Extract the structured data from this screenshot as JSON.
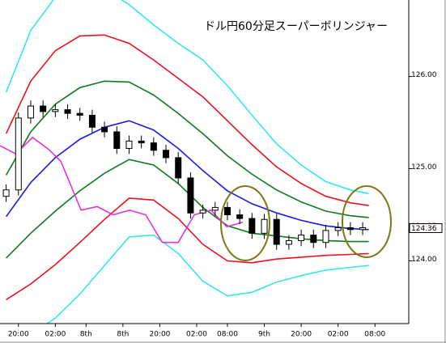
{
  "chart_data": {
    "type": "candlestick",
    "title": "ドル円60分足スーパーボリンジャー",
    "xlim": [
      -1,
      65.5
    ],
    "ylim": [
      123.32,
      126.83
    ],
    "xticks": [
      {
        "value": 2,
        "label": "20:00"
      },
      {
        "value": 8,
        "label": "02:00"
      },
      {
        "value": 13,
        "label": "8th"
      },
      {
        "value": 19,
        "label": "8th"
      },
      {
        "value": 25,
        "label": "20:00"
      },
      {
        "value": 31,
        "label": "02:00"
      },
      {
        "value": 36,
        "label": "08:00"
      },
      {
        "value": 42,
        "label": "9th"
      },
      {
        "value": 48,
        "label": "20:00"
      },
      {
        "value": 54,
        "label": "02:00"
      },
      {
        "value": 60,
        "label": "08:00"
      }
    ],
    "yticks": [
      {
        "value": 124,
        "label": "124.00"
      },
      {
        "value": 125,
        "label": "125.00"
      },
      {
        "value": 126,
        "label": "126.00"
      }
    ],
    "up_color": "#ffffff",
    "down_color": "#000000",
    "x": [
      0,
      2,
      4,
      6,
      8,
      10,
      12,
      14,
      16,
      18,
      20,
      22,
      24,
      26,
      28,
      30,
      32,
      34,
      36,
      38,
      40,
      42,
      44,
      46,
      48,
      50,
      52,
      54,
      56,
      58
    ],
    "open": [
      124.7,
      124.77,
      125.55,
      125.68,
      125.62,
      125.64,
      125.6,
      125.58,
      125.45,
      125.4,
      125.22,
      125.3,
      125.28,
      125.2,
      125.12,
      124.9,
      124.52,
      124.55,
      124.58,
      124.5,
      124.46,
      124.3,
      124.45,
      124.18,
      124.22,
      124.28,
      124.2,
      124.33,
      124.36,
      124.34
    ],
    "high": [
      124.83,
      125.61,
      125.74,
      125.74,
      125.7,
      125.7,
      125.66,
      125.64,
      125.51,
      125.46,
      125.36,
      125.36,
      125.34,
      125.26,
      125.18,
      124.96,
      124.61,
      124.64,
      124.64,
      124.56,
      124.52,
      124.51,
      124.51,
      124.28,
      124.34,
      124.34,
      124.39,
      124.42,
      124.42,
      124.42
    ],
    "low": [
      124.64,
      124.71,
      125.49,
      125.56,
      125.56,
      125.54,
      125.52,
      125.39,
      125.34,
      125.16,
      125.16,
      125.22,
      125.14,
      125.06,
      124.84,
      124.46,
      124.46,
      124.49,
      124.44,
      124.4,
      124.24,
      124.24,
      124.12,
      124.12,
      124.16,
      124.14,
      124.14,
      124.27,
      124.28,
      124.28
    ],
    "close": [
      124.77,
      125.55,
      125.68,
      125.62,
      125.64,
      125.6,
      125.58,
      125.45,
      125.4,
      125.22,
      125.3,
      125.28,
      125.2,
      125.12,
      124.9,
      124.52,
      124.55,
      124.58,
      124.5,
      124.46,
      124.3,
      124.45,
      124.18,
      124.22,
      124.28,
      124.2,
      124.33,
      124.36,
      124.34,
      124.36
    ],
    "series": [
      {
        "color": "#33e6f0",
        "x": [
          0,
          4,
          8,
          12,
          16,
          20,
          24,
          28,
          32,
          36,
          40,
          44,
          48,
          52,
          56,
          59
        ],
        "values": [
          125.83,
          126.5,
          126.86,
          127.0,
          126.95,
          126.78,
          126.56,
          126.36,
          126.18,
          125.9,
          125.58,
          125.27,
          125.04,
          124.86,
          124.77,
          124.73
        ]
      },
      {
        "color": "#33e6f0",
        "x": [
          0,
          4,
          8,
          12,
          16,
          20,
          24,
          28,
          32,
          36,
          40,
          44,
          48,
          52,
          56,
          59
        ],
        "values": [
          123.13,
          123.2,
          123.38,
          123.64,
          123.95,
          124.26,
          124.28,
          124.08,
          123.78,
          123.62,
          123.66,
          123.77,
          123.84,
          123.9,
          123.93,
          123.95
        ]
      },
      {
        "color": "#e8121e",
        "x": [
          0,
          4,
          8,
          12,
          16,
          20,
          24,
          28,
          32,
          36,
          40,
          44,
          48,
          52,
          56,
          59
        ],
        "values": [
          125.38,
          125.95,
          126.28,
          126.44,
          126.45,
          126.36,
          126.18,
          125.98,
          125.78,
          125.52,
          125.26,
          125.02,
          124.84,
          124.7,
          124.63,
          124.6
        ]
      },
      {
        "color": "#e8121e",
        "x": [
          0,
          4,
          8,
          12,
          16,
          20,
          24,
          28,
          32,
          36,
          40,
          44,
          48,
          52,
          56,
          59
        ],
        "values": [
          123.58,
          123.75,
          123.96,
          124.2,
          124.45,
          124.68,
          124.66,
          124.46,
          124.18,
          124.0,
          123.98,
          124.02,
          124.04,
          124.06,
          124.07,
          124.08
        ]
      },
      {
        "color": "#0f7a1e",
        "x": [
          0,
          4,
          8,
          12,
          16,
          20,
          24,
          28,
          32,
          36,
          40,
          44,
          48,
          52,
          56,
          59
        ],
        "values": [
          124.93,
          125.4,
          125.7,
          125.88,
          125.95,
          125.94,
          125.8,
          125.6,
          125.38,
          125.14,
          124.94,
          124.77,
          124.64,
          124.54,
          124.49,
          124.47
        ]
      },
      {
        "color": "#0f7a1e",
        "x": [
          0,
          4,
          8,
          12,
          16,
          20,
          24,
          28,
          32,
          36,
          40,
          44,
          48,
          52,
          56,
          59
        ],
        "values": [
          124.03,
          124.3,
          124.54,
          124.76,
          124.95,
          125.1,
          125.04,
          124.84,
          124.58,
          124.38,
          124.3,
          124.27,
          124.24,
          124.22,
          124.21,
          124.21
        ]
      },
      {
        "color": "#1a1ae0",
        "x": [
          0,
          4,
          8,
          12,
          16,
          20,
          24,
          28,
          32,
          36,
          40,
          44,
          48,
          52,
          56,
          59
        ],
        "values": [
          124.48,
          124.85,
          125.12,
          125.32,
          125.45,
          125.52,
          125.42,
          125.22,
          124.98,
          124.76,
          124.62,
          124.52,
          124.44,
          124.38,
          124.35,
          124.34
        ]
      },
      {
        "color": "#e632d8",
        "x": [
          -1,
          1.6,
          4.3,
          6.9,
          8.9,
          12.2,
          14.8,
          17.4,
          20.1,
          22.7,
          25.4,
          28,
          30.6,
          33.3,
          35.9,
          38.5
        ],
        "values": [
          125.25,
          125.16,
          125.34,
          125.21,
          125.08,
          124.55,
          124.59,
          124.5,
          124.55,
          124.5,
          124.2,
          124.2,
          124.5,
          124.55,
          124.37,
          124.42
        ]
      }
    ],
    "lagging_last": {
      "value": 124.35,
      "color": "#e8121e"
    },
    "last_price": 124.36
  }
}
